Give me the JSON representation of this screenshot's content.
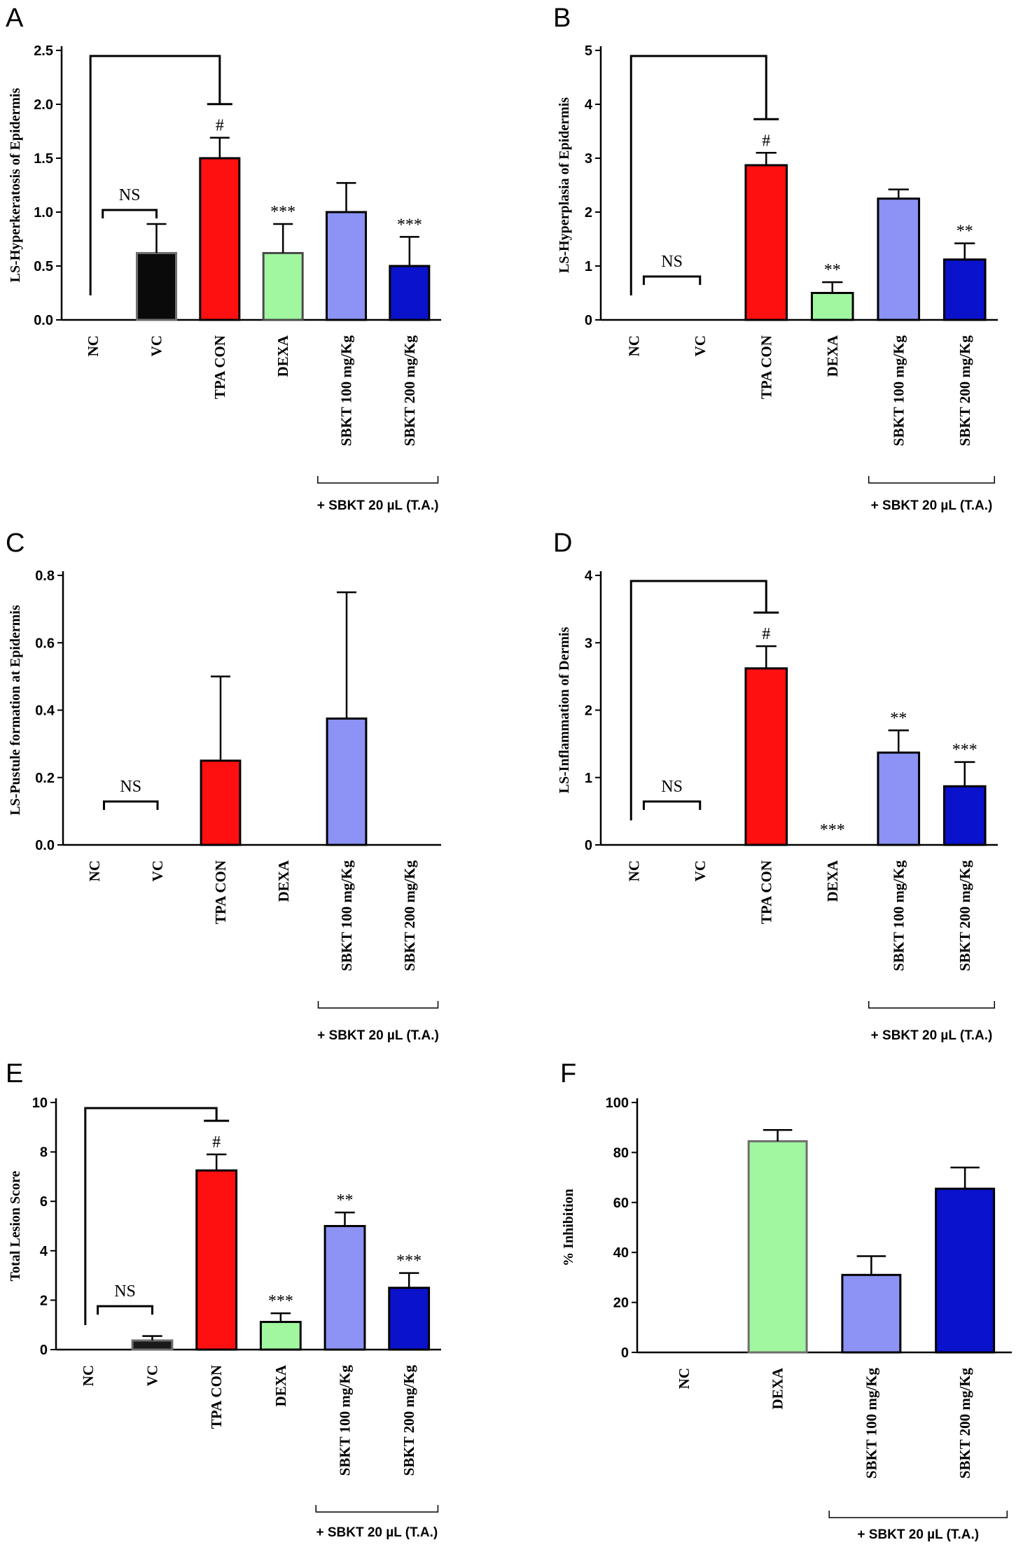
{
  "chart_data": [
    {
      "panel": "A",
      "type": "bar",
      "ylabel": "LS-Hyperkeratosis of Epidermis",
      "ylim": [
        0,
        2.5
      ],
      "yticks": [
        "0.0",
        "0.5",
        "1.0",
        "1.5",
        "2.0",
        "2.5"
      ],
      "categories": [
        "NC",
        "VC",
        "TPA CON",
        "DEXA",
        "SBKT 100 mg/Kg",
        "SBKT 200 mg/Kg"
      ],
      "values": [
        0,
        0.62,
        1.5,
        0.62,
        1.0,
        0.5
      ],
      "errors": [
        0,
        0.27,
        0.19,
        0.27,
        0.27,
        0.27
      ],
      "colors": [
        "#000000",
        "#0a0a0a",
        "#ff1010",
        "#a0f7a0",
        "#8c93f5",
        "#0a12cc"
      ],
      "edge_colors": [
        "#000000",
        "#6e6e6e",
        "#000000",
        "#4a4a4a",
        "#000000",
        "#000000"
      ],
      "significance": [
        "",
        "",
        "#",
        "***",
        "",
        "***"
      ],
      "ns_label": "NS",
      "brace_label": "+ SBKT 20 µL (T.A.)"
    },
    {
      "panel": "B",
      "type": "bar",
      "ylabel": "LS-Hyperplasia of Epidermis",
      "ylim": [
        0,
        5
      ],
      "yticks": [
        "0",
        "1",
        "2",
        "3",
        "4",
        "5"
      ],
      "categories": [
        "NC",
        "VC",
        "TPA CON",
        "DEXA",
        "SBKT 100 mg/Kg",
        "SBKT 200 mg/Kg"
      ],
      "values": [
        0,
        0,
        2.87,
        0.5,
        2.25,
        1.12
      ],
      "errors": [
        0,
        0,
        0.23,
        0.2,
        0.17,
        0.3
      ],
      "colors": [
        "#000000",
        "#000000",
        "#ff1010",
        "#a0f7a0",
        "#8c93f5",
        "#0a12cc"
      ],
      "edge_colors": [
        "#000000",
        "#000000",
        "#000000",
        "#000000",
        "#000000",
        "#000000"
      ],
      "significance": [
        "",
        "",
        "#",
        "**",
        "",
        "**"
      ],
      "ns_label": "NS",
      "brace_label": "+ SBKT 20 µL (T.A.)"
    },
    {
      "panel": "C",
      "type": "bar",
      "ylabel": "LS-Pustule formation at Epidermis",
      "ylim": [
        0,
        0.8
      ],
      "yticks": [
        "0.0",
        "0.2",
        "0.4",
        "0.6",
        "0.8"
      ],
      "categories": [
        "NC",
        "VC",
        "TPA CON",
        "DEXA",
        "SBKT 100 mg/Kg",
        "SBKT 200 mg/Kg"
      ],
      "values": [
        0,
        0,
        0.25,
        0,
        0.375,
        0
      ],
      "errors": [
        0,
        0,
        0.25,
        0,
        0.375,
        0
      ],
      "colors": [
        "#000000",
        "#000000",
        "#ff1010",
        "#a0f7a0",
        "#8c93f5",
        "#0a12cc"
      ],
      "edge_colors": [
        "#000000",
        "#000000",
        "#000000",
        "#000000",
        "#000000",
        "#000000"
      ],
      "significance": [
        "",
        "",
        "",
        "",
        "",
        ""
      ],
      "ns_label": "NS",
      "brace_label": "+ SBKT 20 µL (T.A.)"
    },
    {
      "panel": "D",
      "type": "bar",
      "ylabel": "LS-Inflammation of Dermis",
      "ylim": [
        0,
        4
      ],
      "yticks": [
        "0",
        "1",
        "2",
        "3",
        "4"
      ],
      "categories": [
        "NC",
        "VC",
        "TPA CON",
        "DEXA",
        "SBKT 100 mg/Kg",
        "SBKT 200 mg/Kg"
      ],
      "values": [
        0,
        0,
        2.62,
        0,
        1.37,
        0.87
      ],
      "errors": [
        0,
        0,
        0.33,
        0,
        0.33,
        0.36
      ],
      "colors": [
        "#000000",
        "#000000",
        "#ff1010",
        "#a0f7a0",
        "#8c93f5",
        "#0a12cc"
      ],
      "edge_colors": [
        "#000000",
        "#000000",
        "#000000",
        "#000000",
        "#000000",
        "#000000"
      ],
      "significance": [
        "",
        "",
        "#",
        "***",
        "**",
        "***"
      ],
      "ns_label": "NS",
      "brace_label": "+ SBKT 20 µL (T.A.)"
    },
    {
      "panel": "E",
      "type": "bar",
      "ylabel": "Total Lesion  Score",
      "ylim": [
        0,
        10
      ],
      "yticks": [
        "0",
        "2",
        "4",
        "6",
        "8",
        "10"
      ],
      "categories": [
        "NC",
        "VC",
        "TPA CON",
        "DEXA",
        "SBKT 100 mg/Kg",
        "SBKT 200 mg/Kg"
      ],
      "values": [
        0,
        0.37,
        7.25,
        1.12,
        5.0,
        2.5
      ],
      "errors": [
        0,
        0.18,
        0.65,
        0.35,
        0.55,
        0.6
      ],
      "colors": [
        "#000000",
        "#1a1a1a",
        "#ff1010",
        "#a0f7a0",
        "#8c93f5",
        "#0a12cc"
      ],
      "edge_colors": [
        "#000000",
        "#6e6e6e",
        "#000000",
        "#000000",
        "#000000",
        "#000000"
      ],
      "significance": [
        "",
        "",
        "#",
        "***",
        "**",
        "***"
      ],
      "ns_label": "NS",
      "brace_label": "+ SBKT 20 µL (T.A.)"
    },
    {
      "panel": "F",
      "type": "bar",
      "ylabel": "% Inhibition",
      "ylim": [
        0,
        100
      ],
      "yticks": [
        "0",
        "20",
        "40",
        "60",
        "80",
        "100"
      ],
      "categories": [
        "NC",
        "DEXA",
        "SBKT 100 mg/Kg",
        "SBKT 200 mg/Kg"
      ],
      "values": [
        0,
        84.5,
        31,
        65.5
      ],
      "errors": [
        0,
        4.5,
        7.5,
        8.5
      ],
      "colors": [
        "#000000",
        "#a0f7a0",
        "#8c93f5",
        "#0a12cc"
      ],
      "edge_colors": [
        "#000000",
        "#6e6e6e",
        "#000000",
        "#000000"
      ],
      "significance": [
        "",
        "",
        "",
        ""
      ],
      "ns_label": "",
      "brace_label": "+ SBKT 20 µL (T.A.)"
    }
  ]
}
